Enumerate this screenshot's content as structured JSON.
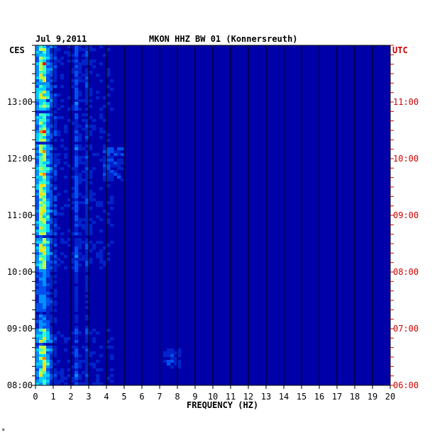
{
  "chart_data": {
    "type": "heatmap",
    "title": "MKON HHZ BW 01 (Konnersreuth)",
    "date": "Jul 9,2011",
    "left_axis_label": "CES",
    "right_axis_label": "UTC",
    "xlabel": "FREQUENCY (HZ)",
    "xlim": [
      0,
      20
    ],
    "x_ticks": [
      "0",
      "1",
      "2",
      "3",
      "4",
      "5",
      "6",
      "7",
      "8",
      "9",
      "10",
      "11",
      "12",
      "13",
      "14",
      "15",
      "16",
      "17",
      "18",
      "19",
      "20"
    ],
    "left_time_ticks": [
      "13:00",
      "12:00",
      "11:00",
      "10:00",
      "09:00",
      "08:00"
    ],
    "right_time_ticks": [
      "11:00",
      "10:00",
      "09:00",
      "08:00",
      "07:00",
      "06:00"
    ],
    "time_range_utc": [
      "06:00",
      "12:00"
    ],
    "colors": {
      "background": "#0000a8",
      "low": "#0033cc",
      "mid": "#00c8ff",
      "high": "#ffff00",
      "peak": "#ff0000",
      "utc_label": "#d00000"
    }
  },
  "corner_mark": "*"
}
